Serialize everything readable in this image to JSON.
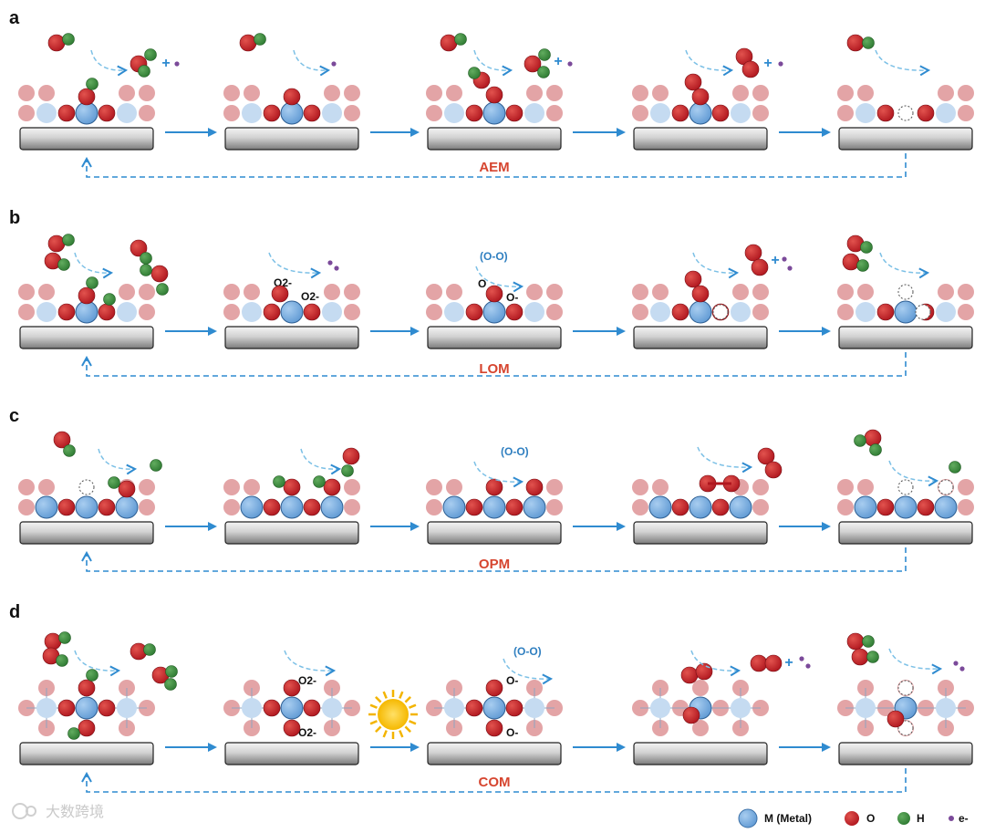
{
  "panels": [
    {
      "letter": "a",
      "mechanism": "AEM",
      "states": [
        "State 1",
        "State 2",
        "State 3",
        "State 4",
        "State 5"
      ],
      "intermediate_labels": []
    },
    {
      "letter": "b",
      "mechanism": "LOM",
      "states": [
        "State 1",
        "State 2",
        "State 3",
        "State 4",
        "State 5"
      ],
      "intermediate_labels": [
        "O2-",
        "O2-",
        "(O-O)",
        "O",
        "O-"
      ]
    },
    {
      "letter": "c",
      "mechanism": "OPM",
      "states": [
        "State 1",
        "State 2",
        "State 3",
        "State 4",
        "State 5"
      ],
      "intermediate_labels": [
        "(O-O)"
      ]
    },
    {
      "letter": "d",
      "mechanism": "COM",
      "states": [
        "State 1",
        "State 2",
        "State 3",
        "State 4",
        "State 5"
      ],
      "intermediate_labels": [
        "O2-",
        "O2-",
        "(O-O)",
        "O-",
        "O-"
      ]
    }
  ],
  "legend": {
    "metal": "M (Metal)",
    "oxygen": "O",
    "hydrogen": "H",
    "electron": "e-"
  },
  "watermark": "大数跨境",
  "colors": {
    "oxygen": "#c8202a",
    "hydrogen": "#3f8f3f",
    "metal": "#7fb0e0",
    "metal_light": "#c5dbf1",
    "lattice_oxygen": "#e3a4a6",
    "electron": "#7b4a9a",
    "arrow": "#2f8bd0",
    "mechanism_label": "#d6452f"
  }
}
